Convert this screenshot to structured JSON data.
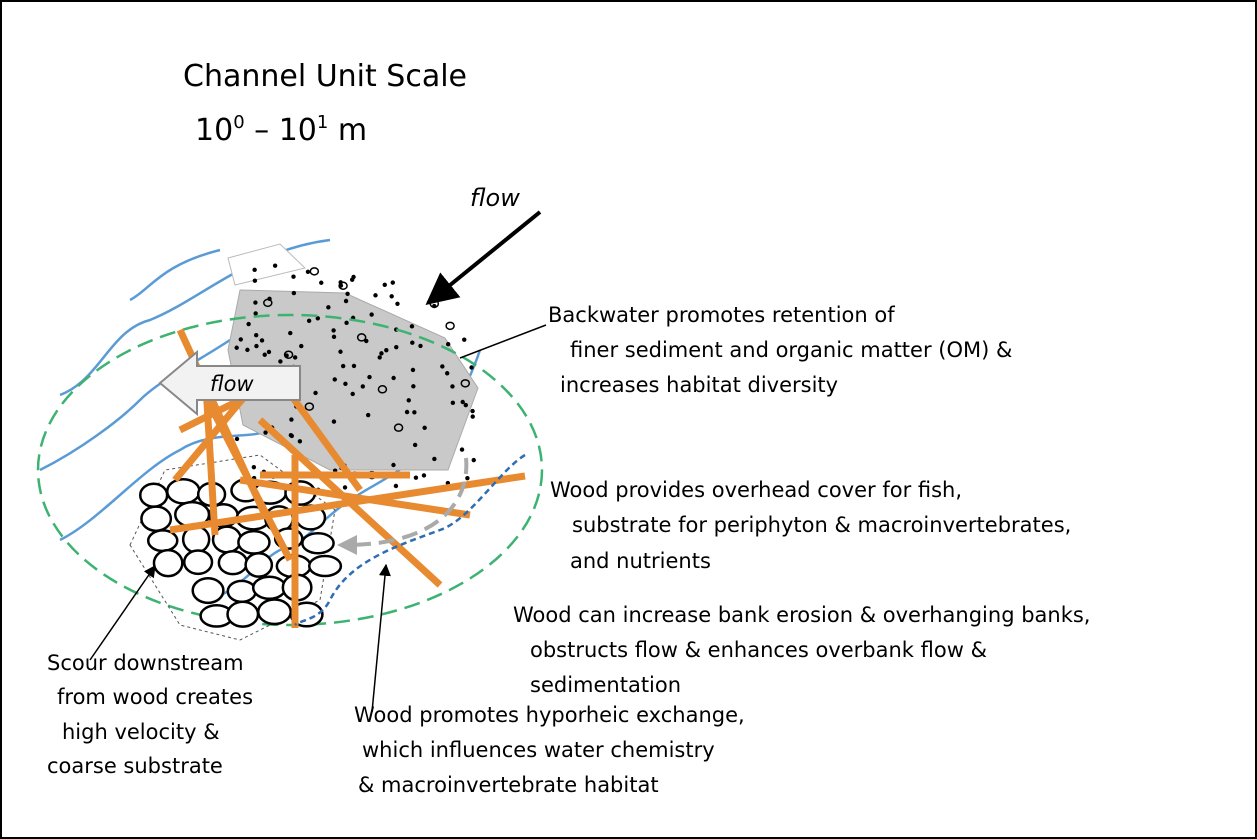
{
  "title": "Channel Unit Scale",
  "scale": [
    "10",
    "0",
    " – 10",
    "1",
    " m"
  ],
  "flow_top": "flow",
  "flow_arrow": "flow",
  "backwater": [
    "Backwater promotes retention of",
    "finer sediment and organic matter (OM) &",
    "increases habitat diversity"
  ],
  "cover": [
    "Wood provides overhead cover for fish,",
    "substrate for periphyton &  macroinvertebrates,",
    "and nutrients"
  ],
  "erosion": [
    "Wood can increase bank erosion & overhanging banks,",
    "obstructs flow & enhances overbank flow &",
    "sedimentation"
  ],
  "scour": [
    "Scour downstream",
    "from wood creates",
    "high velocity &",
    "coarse substrate"
  ],
  "hyporheic": [
    "Wood promotes hyporheic exchange,",
    "which influences water chemistry",
    "& macroinvertebrate habitat"
  ]
}
